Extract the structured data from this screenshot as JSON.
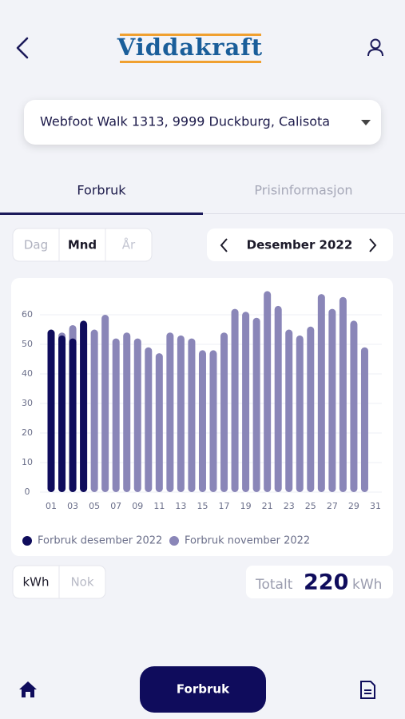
{
  "header": {
    "logo": "Viddakraft"
  },
  "address": "Webfoot Walk 1313, 9999 Duckburg, Calisota",
  "tabs": [
    "Forbruk",
    "Prisinformasjon"
  ],
  "period_toggle": [
    "Dag",
    "Mnd",
    "År"
  ],
  "period": "Desember 2022",
  "unit_toggle": [
    "kWh",
    "Nok"
  ],
  "total": {
    "label": "Totalt",
    "value": 220,
    "unit": "kWh"
  },
  "nav": {
    "button": "Forbruk"
  },
  "chart_data": {
    "type": "bar",
    "categories": [
      "01",
      null,
      "03",
      null,
      "05",
      null,
      "07",
      null,
      "09",
      null,
      "11",
      null,
      "13",
      null,
      "15",
      null,
      "17",
      null,
      "19",
      null,
      "21",
      null,
      "23",
      null,
      "25",
      null,
      "27",
      null,
      "29",
      null,
      "31"
    ],
    "series": [
      {
        "name": "Forbruk november 2022",
        "color": "#8a86b8",
        "values": [
          54,
          54,
          56.5,
          56,
          55,
          60,
          52,
          54,
          52,
          49,
          47,
          54,
          53,
          52,
          48,
          48,
          54,
          62,
          61,
          59,
          68,
          63,
          55,
          53,
          56,
          67,
          62,
          66,
          58,
          49,
          null
        ]
      },
      {
        "name": "Forbruk desember 2022",
        "color": "#0f0c5c",
        "values": [
          55,
          53,
          52,
          58,
          null,
          null,
          null,
          null,
          null,
          null,
          null,
          null,
          null,
          null,
          null,
          null,
          null,
          null,
          null,
          null,
          null,
          null,
          null,
          null,
          null,
          null,
          null,
          null,
          null,
          null,
          null
        ]
      }
    ],
    "ylim": [
      0,
      70
    ],
    "yticks": [
      0,
      10,
      20,
      30,
      40,
      50,
      60
    ],
    "grid": true
  }
}
